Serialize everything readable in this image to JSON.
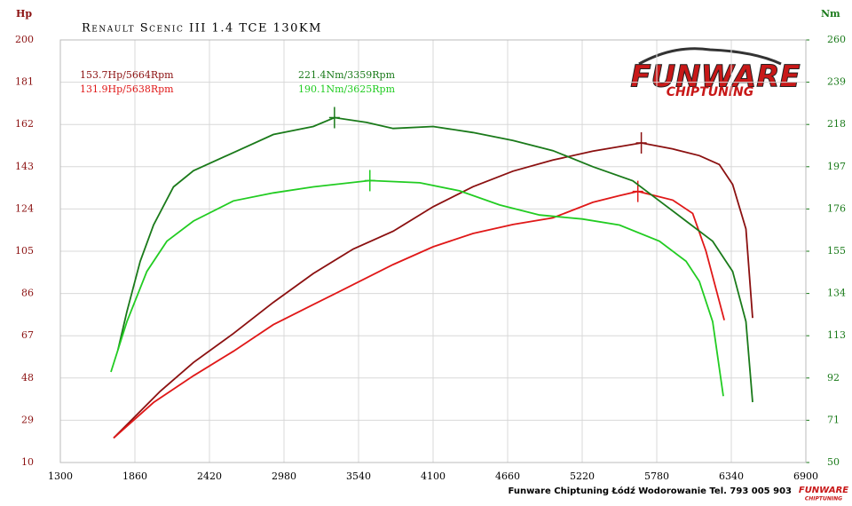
{
  "chart_data": {
    "type": "line",
    "title": "Renault Scenic III 1.4 TCE 130KM",
    "y_label": "Hp",
    "y2_label": "Nm",
    "footer": "Funware Chiptuning Łódź Wodorowanie Tel. 793 005 903",
    "logo": {
      "top": "FUNWARE",
      "bottom": "CHIPTUNING"
    },
    "annotations": [
      "153.7Hp/5664Rpm",
      "131.9Hp/5638Rpm",
      "221.4Nm/3359Rpm",
      "190.1Nm/3625Rpm"
    ],
    "annotation_colors": [
      "#8b1010",
      "#e01818",
      "#1a7a1a",
      "#22cc22"
    ],
    "xlim": [
      1300,
      6900
    ],
    "xticks": [
      1300,
      1860,
      2420,
      2980,
      3540,
      4100,
      4660,
      5220,
      5780,
      6340,
      6900
    ],
    "ylim": [
      10,
      200
    ],
    "yticks": [
      10,
      29,
      48,
      67,
      86,
      105,
      124,
      143,
      162,
      181,
      200
    ],
    "y2lim": [
      50,
      260
    ],
    "y2ticks": [
      50,
      71,
      92,
      113,
      134,
      155,
      176,
      197,
      218,
      239,
      260
    ],
    "grid": true,
    "series": [
      {
        "color": "#8b1010",
        "x": [
          1700,
          1850,
          2050,
          2300,
          2600,
          2900,
          3200,
          3500,
          3800,
          4100,
          4400,
          4700,
          5000,
          5300,
          5664,
          5900,
          6100,
          6250,
          6350,
          6450,
          6500
        ],
        "values": [
          21,
          30,
          42,
          55,
          68,
          82,
          95,
          106,
          114,
          125,
          134,
          141,
          146,
          150,
          153.7,
          151,
          148,
          144,
          135,
          115,
          75
        ]
      },
      {
        "color": "#e01818",
        "x": [
          1700,
          2000,
          2300,
          2600,
          2900,
          3200,
          3500,
          3800,
          4100,
          4400,
          4700,
          5000,
          5300,
          5500,
          5638,
          5900,
          6050,
          6150,
          6287
        ],
        "values": [
          21,
          37,
          49,
          60,
          72,
          81,
          90,
          99,
          107,
          113,
          117,
          120,
          127,
          130,
          131.9,
          128,
          122,
          105,
          74
        ]
      },
      {
        "color": "#1a7a1a",
        "axis": "y2",
        "x": [
          1733,
          1800,
          1900,
          2000,
          2150,
          2300,
          2600,
          2900,
          3200,
          3359,
          3600,
          3800,
          4100,
          4400,
          4700,
          5000,
          5300,
          5600,
          5800,
          6000,
          6200,
          6350,
          6450,
          6500
        ],
        "values": [
          106,
          125,
          150,
          168,
          187,
          195,
          204,
          213,
          217,
          221.4,
          219,
          216,
          217,
          214,
          210,
          205,
          197,
          190,
          180,
          170,
          160,
          145,
          120,
          80
        ]
      },
      {
        "color": "#22cc22",
        "axis": "y2",
        "x": [
          1680,
          1800,
          1950,
          2100,
          2300,
          2600,
          2900,
          3200,
          3625,
          4000,
          4300,
          4600,
          4900,
          5220,
          5500,
          5800,
          6000,
          6100,
          6200,
          6280
        ],
        "values": [
          95,
          120,
          145,
          160,
          170,
          180,
          184,
          187,
          190.1,
          189,
          185,
          178,
          173,
          171,
          168,
          160,
          150,
          140,
          120,
          83
        ]
      }
    ]
  }
}
